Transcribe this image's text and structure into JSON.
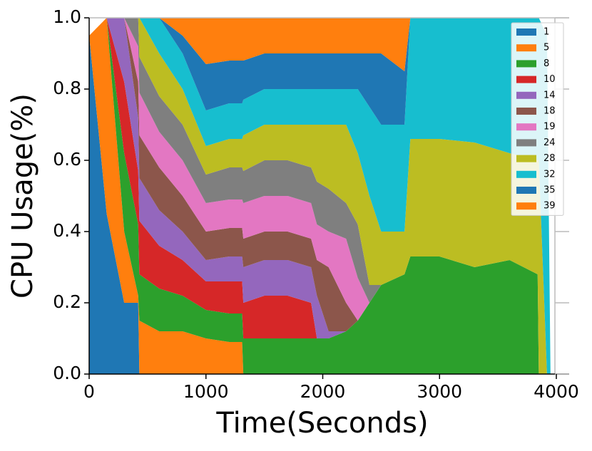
{
  "chart_data": {
    "type": "stacked_area",
    "xlabel": "Time(Seconds)",
    "ylabel": "CPU Usage(%)",
    "x": [
      0,
      150,
      300,
      420,
      430,
      600,
      800,
      1000,
      1200,
      1310,
      1320,
      1500,
      1700,
      1900,
      1950,
      2050,
      2200,
      2300,
      2400,
      2500,
      2700,
      2750,
      3000,
      3300,
      3600,
      3840,
      3850,
      3920,
      3950
    ],
    "series": [
      {
        "name": "1",
        "color": "#1f77b4",
        "values": [
          0.95,
          0.45,
          0.2,
          0.2,
          0,
          0,
          0,
          0,
          0,
          0,
          0,
          0,
          0,
          0,
          0,
          0,
          0,
          0,
          0,
          0,
          0,
          0,
          0,
          0,
          0,
          0,
          0,
          0,
          0
        ]
      },
      {
        "name": "5",
        "color": "#ff7f0e",
        "values": [
          0,
          0.55,
          0.2,
          0.02,
          0.15,
          0.12,
          0.12,
          0.1,
          0.09,
          0.09,
          0,
          0,
          0,
          0,
          0,
          0,
          0,
          0,
          0,
          0,
          0,
          0,
          0,
          0,
          0,
          0,
          0,
          0,
          0
        ]
      },
      {
        "name": "8",
        "color": "#2ca02c",
        "values": [
          0,
          0,
          0.22,
          0.2,
          0.13,
          0.12,
          0.1,
          0.08,
          0.08,
          0.08,
          0.1,
          0.1,
          0.1,
          0.1,
          0.1,
          0.1,
          0.12,
          0.15,
          0.2,
          0.25,
          0.28,
          0.33,
          0.33,
          0.3,
          0.32,
          0.28,
          0,
          0,
          0
        ]
      },
      {
        "name": "10",
        "color": "#d62728",
        "values": [
          0,
          0,
          0.2,
          0.15,
          0.15,
          0.12,
          0.1,
          0.08,
          0.09,
          0.09,
          0.1,
          0.12,
          0.12,
          0.1,
          0,
          0,
          0,
          0,
          0,
          0,
          0,
          0,
          0,
          0,
          0,
          0,
          0,
          0,
          0
        ]
      },
      {
        "name": "14",
        "color": "#9467bd",
        "values": [
          0,
          0,
          0.18,
          0.15,
          0.12,
          0.1,
          0.08,
          0.06,
          0.07,
          0.07,
          0.1,
          0.1,
          0.1,
          0.1,
          0.12,
          0.02,
          0,
          0,
          0,
          0,
          0,
          0,
          0,
          0,
          0,
          0,
          0,
          0,
          0
        ]
      },
      {
        "name": "18",
        "color": "#8c564b",
        "values": [
          0,
          0,
          0,
          0.1,
          0.12,
          0.12,
          0.1,
          0.08,
          0.08,
          0.08,
          0.08,
          0.08,
          0.08,
          0.08,
          0.1,
          0.18,
          0.08,
          0,
          0,
          0,
          0,
          0,
          0,
          0,
          0,
          0,
          0,
          0,
          0
        ]
      },
      {
        "name": "19",
        "color": "#e377c2",
        "values": [
          0,
          0,
          0,
          0.1,
          0.12,
          0.1,
          0.1,
          0.08,
          0.08,
          0.08,
          0.1,
          0.1,
          0.1,
          0.1,
          0.1,
          0.1,
          0.18,
          0.12,
          0,
          0,
          0,
          0,
          0,
          0,
          0,
          0,
          0,
          0,
          0
        ]
      },
      {
        "name": "24",
        "color": "#7f7f7f",
        "values": [
          0,
          0,
          0,
          0.08,
          0.1,
          0.1,
          0.1,
          0.08,
          0.09,
          0.09,
          0.09,
          0.1,
          0.1,
          0.1,
          0.12,
          0.12,
          0.1,
          0.15,
          0.05,
          0,
          0,
          0,
          0,
          0,
          0,
          0,
          0,
          0,
          0
        ]
      },
      {
        "name": "28",
        "color": "#bcbd22",
        "values": [
          0,
          0,
          0,
          0,
          0.11,
          0.12,
          0.1,
          0.08,
          0.08,
          0.08,
          0.1,
          0.1,
          0.1,
          0.12,
          0.16,
          0.18,
          0.22,
          0.2,
          0.25,
          0.15,
          0.12,
          0.33,
          0.33,
          0.35,
          0.3,
          0.32,
          0.6,
          0,
          0
        ]
      },
      {
        "name": "32",
        "color": "#17becf",
        "values": [
          0,
          0,
          0,
          0,
          0,
          0.1,
          0.1,
          0.1,
          0.1,
          0.1,
          0.1,
          0.1,
          0.1,
          0.1,
          0.1,
          0.1,
          0.1,
          0.18,
          0.25,
          0.3,
          0.3,
          0.34,
          0.34,
          0.35,
          0.38,
          0.4,
          0.4,
          0.95,
          0
        ]
      },
      {
        "name": "35",
        "color": "#1f77b4",
        "values": [
          0,
          0,
          0,
          0,
          0,
          0,
          0.05,
          0.13,
          0.12,
          0.12,
          0.11,
          0.1,
          0.1,
          0.1,
          0.1,
          0.1,
          0.1,
          0.1,
          0.15,
          0.2,
          0.15,
          0,
          0,
          0,
          0,
          0,
          0,
          0,
          0
        ]
      },
      {
        "name": "39",
        "color": "#ff7f0e",
        "values": [
          0,
          0,
          0,
          0,
          0,
          0,
          0.05,
          0.13,
          0.12,
          0.12,
          0.12,
          0.1,
          0.1,
          0.1,
          0.1,
          0.1,
          0.1,
          0.1,
          0.1,
          0.1,
          0.15,
          0,
          0,
          0,
          0,
          0,
          0,
          0,
          0
        ]
      }
    ],
    "xlim": [
      0,
      4110
    ],
    "ylim": [
      0,
      1
    ],
    "xticks": [
      0,
      1000,
      2000,
      3000,
      4000
    ],
    "yticks": [
      {
        "value": 0,
        "label": "0.0"
      },
      {
        "value": 0.2,
        "label": "0.2"
      },
      {
        "value": 0.4,
        "label": "0.4"
      },
      {
        "value": 0.6,
        "label": "0.6"
      },
      {
        "value": 0.8,
        "label": "0.8"
      },
      {
        "value": 1,
        "label": "1.0"
      }
    ],
    "legend": "upper right"
  }
}
